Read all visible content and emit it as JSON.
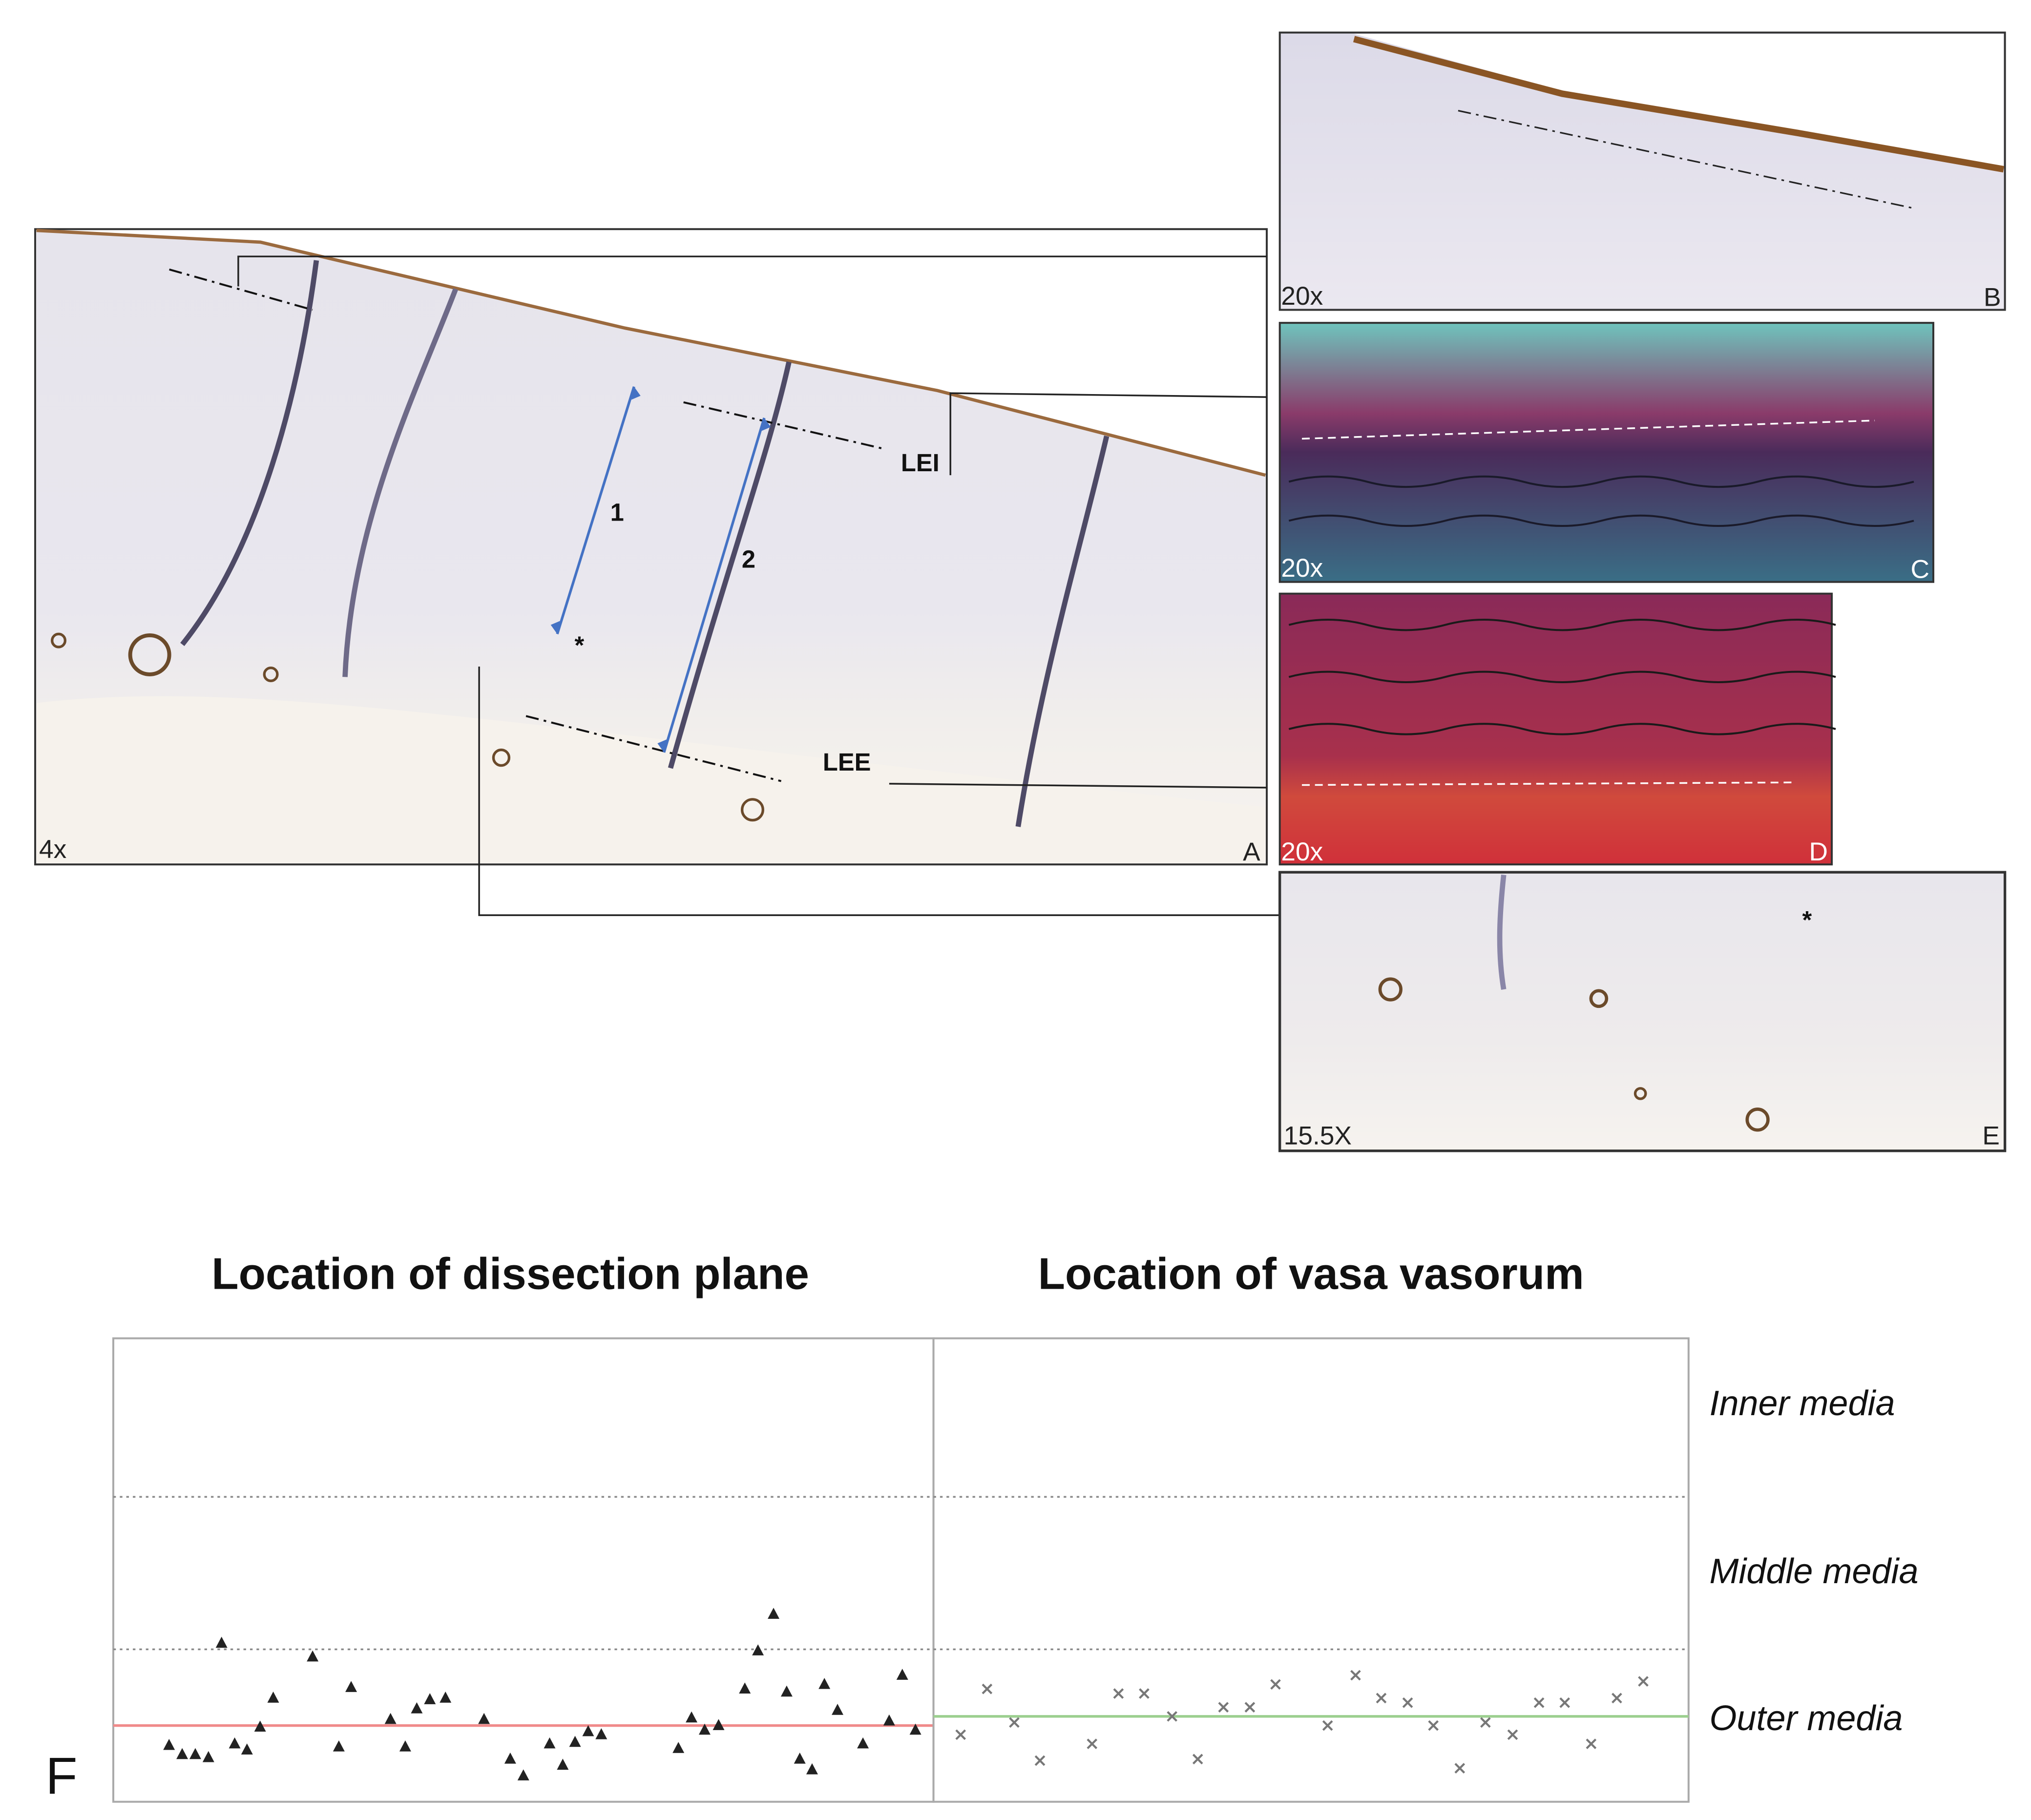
{
  "figure": {
    "panels": [
      {
        "letter": "A",
        "magnification": "4x"
      },
      {
        "letter": "B",
        "magnification": "20x"
      },
      {
        "letter": "C",
        "magnification": "20x"
      },
      {
        "letter": "D",
        "magnification": "20x"
      },
      {
        "letter": "E",
        "magnification": "15.5X"
      }
    ],
    "annotations": {
      "lei": "LEI",
      "lee": "LEE",
      "arrow_1": "1",
      "arrow_2": "2",
      "asterisk_a": "*",
      "asterisk_e": "*"
    },
    "band_labels": [
      "Inner media",
      "Middle media",
      "Outer media"
    ],
    "panel_f_label": "F"
  },
  "chart_data": [
    {
      "type": "scatter",
      "title": "Location of dissection plane",
      "marker": "triangle",
      "color": "#222222",
      "x": [
        6.8,
        8.4,
        10.0,
        11.6,
        13.2,
        14.8,
        16.3,
        17.9,
        19.5,
        24.3,
        27.5,
        29.0,
        33.8,
        35.6,
        37.0,
        38.6,
        40.5,
        45.2,
        48.4,
        50.0,
        53.2,
        54.8,
        56.3,
        57.9,
        59.5,
        68.9,
        70.5,
        72.1,
        73.8,
        77.0,
        78.6,
        80.5,
        82.1,
        83.7,
        85.2,
        86.7,
        88.3,
        91.4,
        94.6,
        96.2,
        97.8
      ],
      "values": [
        0.37,
        0.31,
        0.31,
        0.29,
        1.04,
        0.38,
        0.34,
        0.49,
        0.68,
        0.95,
        0.36,
        0.75,
        0.54,
        0.36,
        0.61,
        0.67,
        0.68,
        0.54,
        0.28,
        0.17,
        0.38,
        0.24,
        0.39,
        0.46,
        0.44,
        0.35,
        0.55,
        0.47,
        0.5,
        0.74,
        0.99,
        1.23,
        0.72,
        0.28,
        0.21,
        0.77,
        0.6,
        0.38,
        0.53,
        0.83,
        0.47
      ],
      "xlim": [
        0,
        100
      ],
      "ylim": [
        0,
        3.04
      ],
      "band_lines": [
        1,
        2
      ],
      "reference_line": 0.5,
      "reference_color": "#f08a8a"
    },
    {
      "type": "scatter",
      "title": "Location of vasa vasorum",
      "marker": "cross",
      "color": "#777777",
      "x": [
        3.6,
        7.1,
        10.7,
        14.1,
        21.0,
        24.5,
        27.9,
        31.6,
        35.0,
        38.4,
        41.9,
        45.3,
        52.2,
        55.9,
        59.3,
        62.8,
        66.2,
        69.7,
        73.1,
        76.7,
        80.2,
        83.6,
        87.1,
        90.5,
        94.0
      ],
      "values": [
        0.44,
        0.74,
        0.52,
        0.27,
        0.38,
        0.71,
        0.71,
        0.56,
        0.28,
        0.62,
        0.62,
        0.77,
        0.5,
        0.83,
        0.68,
        0.65,
        0.5,
        0.22,
        0.52,
        0.44,
        0.65,
        0.65,
        0.38,
        0.68,
        0.79
      ],
      "xlim": [
        0,
        100
      ],
      "ylim": [
        0,
        3.04
      ],
      "band_lines": [
        1,
        2
      ],
      "reference_line": 0.56,
      "reference_color": "#9ccf8f"
    }
  ]
}
